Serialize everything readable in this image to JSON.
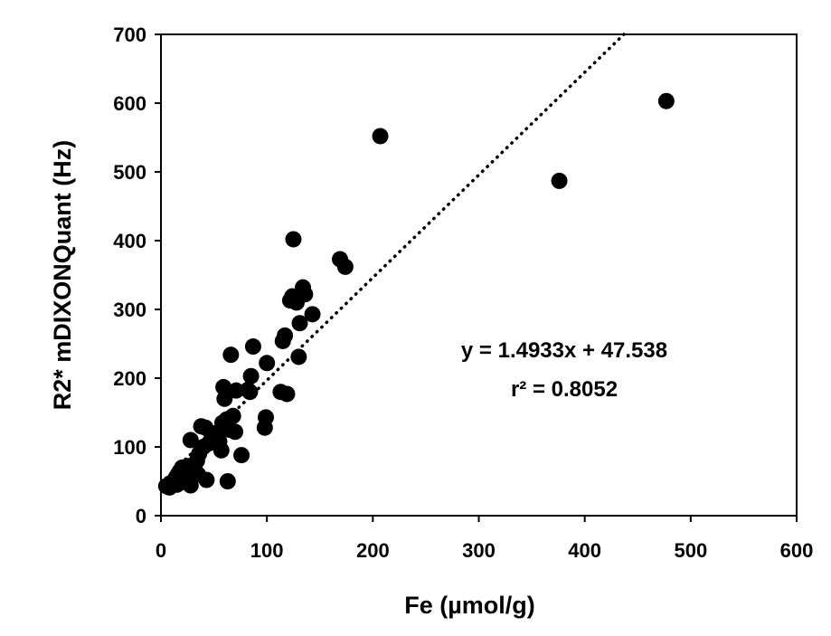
{
  "chart_data": {
    "type": "scatter",
    "title": "",
    "xlabel": "Fe (µmol/g)",
    "ylabel": "R2* mDIXONQuant (Hz)",
    "xlim": [
      0,
      600
    ],
    "ylim": [
      0,
      700
    ],
    "x_ticks": [
      0,
      100,
      200,
      300,
      400,
      500,
      600
    ],
    "y_ticks": [
      0,
      100,
      200,
      300,
      400,
      500,
      600,
      700
    ],
    "grid": false,
    "legend": "none",
    "marker_color": "#000000",
    "trendline": {
      "style": "dotted",
      "slope": 1.4933,
      "intercept": 47.538,
      "equation_label": "y = 1.4933x + 47.538",
      "r2_label": "r² = 0.8052"
    },
    "points": [
      [
        5,
        43
      ],
      [
        8,
        41
      ],
      [
        10,
        48
      ],
      [
        12,
        50
      ],
      [
        14,
        55
      ],
      [
        15,
        45
      ],
      [
        16,
        60
      ],
      [
        18,
        48
      ],
      [
        18,
        65
      ],
      [
        20,
        52
      ],
      [
        20,
        70
      ],
      [
        22,
        58
      ],
      [
        23,
        68
      ],
      [
        24,
        55
      ],
      [
        25,
        62
      ],
      [
        26,
        72
      ],
      [
        27,
        50
      ],
      [
        28,
        44
      ],
      [
        28,
        110
      ],
      [
        30,
        65
      ],
      [
        32,
        75
      ],
      [
        34,
        80
      ],
      [
        35,
        60
      ],
      [
        36,
        90
      ],
      [
        38,
        130
      ],
      [
        40,
        100
      ],
      [
        42,
        128
      ],
      [
        43,
        52
      ],
      [
        45,
        105
      ],
      [
        48,
        115
      ],
      [
        52,
        120
      ],
      [
        55,
        108
      ],
      [
        57,
        95
      ],
      [
        58,
        135
      ],
      [
        59,
        187
      ],
      [
        60,
        170
      ],
      [
        62,
        140
      ],
      [
        63,
        50
      ],
      [
        65,
        125
      ],
      [
        66,
        234
      ],
      [
        68,
        145
      ],
      [
        70,
        122
      ],
      [
        71,
        182
      ],
      [
        76,
        88
      ],
      [
        82,
        183
      ],
      [
        84,
        180
      ],
      [
        85,
        203
      ],
      [
        87,
        246
      ],
      [
        98,
        128
      ],
      [
        99,
        143
      ],
      [
        100,
        222
      ],
      [
        113,
        180
      ],
      [
        115,
        254
      ],
      [
        117,
        262
      ],
      [
        119,
        177
      ],
      [
        122,
        313
      ],
      [
        124,
        319
      ],
      [
        125,
        402
      ],
      [
        128,
        310
      ],
      [
        130,
        231
      ],
      [
        131,
        280
      ],
      [
        134,
        332
      ],
      [
        136,
        322
      ],
      [
        143,
        293
      ],
      [
        169,
        373
      ],
      [
        174,
        362
      ],
      [
        207,
        552
      ],
      [
        376,
        487
      ],
      [
        477,
        603
      ]
    ]
  }
}
